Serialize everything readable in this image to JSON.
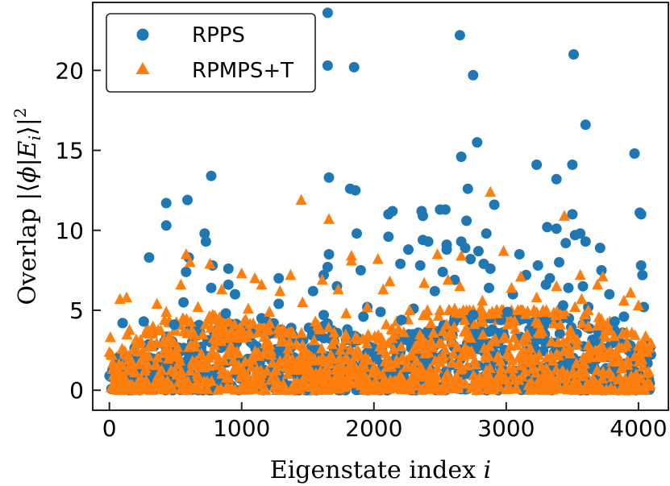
{
  "chart_data": {
    "type": "scatter",
    "xlabel": {
      "text": "Eigenstate index ",
      "var": "i"
    },
    "ylabel": {
      "text": "Overlap |⟨",
      "phi": "ϕ",
      "bar": "|",
      "E": "E",
      "sub": "i",
      "close": "⟩|",
      "sup": "2"
    },
    "xlim": [
      -120,
      4220
    ],
    "ylim": [
      -1.2,
      24.2
    ],
    "xticks": [
      0,
      1000,
      2000,
      3000,
      4000
    ],
    "yticks": [
      0,
      5,
      10,
      15,
      20
    ],
    "xtick_labels": [
      "0",
      "1000",
      "2000",
      "3000",
      "4000"
    ],
    "ytick_labels": [
      "0",
      "5",
      "10",
      "15",
      "20"
    ],
    "n_points": 4096,
    "legend_position": "top-left",
    "grid": false,
    "series": [
      {
        "name": "RPPS",
        "marker": "circle",
        "color": "#1f77b4",
        "highlighted": [
          [
            1650,
            23.6
          ],
          [
            1650,
            20.3
          ],
          [
            1850,
            20.2
          ],
          [
            2650,
            22.2
          ],
          [
            2750,
            19.7
          ],
          [
            3510,
            21.0
          ],
          [
            3600,
            16.6
          ],
          [
            2780,
            15.5
          ],
          [
            2660,
            14.6
          ],
          [
            3230,
            14.1
          ],
          [
            3500,
            14.1
          ],
          [
            3970,
            14.8
          ],
          [
            3380,
            13.2
          ],
          [
            770,
            13.4
          ],
          [
            1660,
            13.3
          ],
          [
            2710,
            12.6
          ],
          [
            1820,
            12.6
          ],
          [
            1860,
            12.5
          ],
          [
            430,
            11.7
          ],
          [
            590,
            11.9
          ],
          [
            2910,
            11.6
          ],
          [
            2140,
            11.2
          ],
          [
            2360,
            11.2
          ],
          [
            2500,
            11.3
          ],
          [
            2540,
            11.3
          ],
          [
            2110,
            11.0
          ],
          [
            2370,
            10.9
          ],
          [
            4010,
            11.1
          ],
          [
            4020,
            11.0
          ],
          [
            3500,
            11.0
          ],
          [
            430,
            10.3
          ],
          [
            2700,
            10.6
          ],
          [
            3310,
            10.2
          ],
          [
            3380,
            10.1
          ],
          [
            720,
            9.8
          ],
          [
            1870,
            9.8
          ],
          [
            2660,
            9.3
          ],
          [
            2850,
            9.8
          ],
          [
            3560,
            9.8
          ],
          [
            3520,
            9.7
          ],
          [
            730,
            9.3
          ],
          [
            2110,
            9.6
          ],
          [
            2410,
            9.3
          ],
          [
            2370,
            9.4
          ],
          [
            2550,
            9.1
          ],
          [
            1660,
            8.5
          ],
          [
            2260,
            8.8
          ],
          [
            2550,
            8.8
          ],
          [
            2690,
            8.9
          ],
          [
            2790,
            8.7
          ],
          [
            3450,
            9.2
          ],
          [
            3600,
            9.3
          ],
          [
            3710,
            8.9
          ],
          [
            300,
            8.3
          ],
          [
            600,
            8.3
          ],
          [
            2200,
            7.9
          ],
          [
            2350,
            7.8
          ],
          [
            2730,
            8.2
          ],
          [
            3100,
            8.5
          ],
          [
            3400,
            8.0
          ],
          [
            4020,
            7.8
          ],
          [
            780,
            7.8
          ],
          [
            1650,
            7.7
          ],
          [
            1900,
            7.5
          ],
          [
            2830,
            7.9
          ],
          [
            3240,
            7.8
          ],
          [
            2880,
            7.6
          ],
          [
            3720,
            7.5
          ],
          [
            900,
            7.6
          ],
          [
            580,
            7.4
          ],
          [
            1280,
            7.0
          ],
          [
            1620,
            7.2
          ],
          [
            2520,
            7.4
          ],
          [
            3150,
            7.2
          ],
          [
            3330,
            7.0
          ],
          [
            4030,
            7.2
          ],
          [
            770,
            6.4
          ],
          [
            900,
            6.6
          ],
          [
            1720,
            6.5
          ],
          [
            2610,
            6.9
          ],
          [
            2870,
            6.4
          ],
          [
            3300,
            6.6
          ],
          [
            3470,
            6.4
          ],
          [
            3580,
            6.5
          ],
          [
            950,
            6.0
          ],
          [
            1540,
            6.2
          ],
          [
            2460,
            6.2
          ],
          [
            3050,
            6.0
          ],
          [
            3780,
            6.0
          ],
          [
            1280,
            5.4
          ],
          [
            560,
            5.5
          ],
          [
            1950,
            5.2
          ],
          [
            2300,
            5.1
          ],
          [
            3430,
            5.3
          ],
          [
            3620,
            5.2
          ],
          [
            4040,
            5.2
          ],
          [
            100,
            4.2
          ],
          [
            880,
            4.8
          ],
          [
            1620,
            4.7
          ],
          [
            2050,
            4.9
          ],
          [
            2750,
            4.7
          ],
          [
            3010,
            4.9
          ],
          [
            3890,
            4.6
          ],
          [
            260,
            4.3
          ],
          [
            1150,
            4.5
          ],
          [
            1920,
            4.6
          ],
          [
            2210,
            4.4
          ],
          [
            2960,
            4.4
          ],
          [
            3820,
            4.3
          ],
          [
            490,
            4.1
          ]
        ]
      },
      {
        "name": "RPMPS+T",
        "marker": "triangle",
        "color": "#ff7f0e",
        "highlighted": [
          [
            2880,
            12.4
          ],
          [
            1450,
            11.9
          ],
          [
            1660,
            10.7
          ],
          [
            3440,
            10.9
          ],
          [
            580,
            8.5
          ],
          [
            1830,
            8.4
          ],
          [
            1830,
            8.1
          ],
          [
            2030,
            8.2
          ],
          [
            2480,
            8.5
          ],
          [
            2660,
            8.4
          ],
          [
            2980,
            8.7
          ],
          [
            610,
            8.0
          ],
          [
            760,
            7.9
          ],
          [
            1370,
            7.2
          ],
          [
            1000,
            7.3
          ],
          [
            2560,
            6.9
          ],
          [
            3110,
            7.1
          ],
          [
            3560,
            7.2
          ],
          [
            3730,
            7.1
          ],
          [
            1100,
            7.0
          ],
          [
            1610,
            6.9
          ],
          [
            2120,
            6.8
          ],
          [
            2380,
            6.7
          ],
          [
            540,
            6.6
          ],
          [
            1150,
            6.6
          ],
          [
            2650,
            6.5
          ],
          [
            3040,
            6.4
          ],
          [
            3380,
            6.5
          ],
          [
            3690,
            6.6
          ],
          [
            1730,
            6.3
          ],
          [
            850,
            6.3
          ],
          [
            1290,
            6.2
          ],
          [
            2070,
            6.3
          ],
          [
            3940,
            6.1
          ],
          [
            80,
            5.7
          ],
          [
            130,
            5.8
          ],
          [
            3230,
            5.8
          ],
          [
            3570,
            5.7
          ],
          [
            3890,
            5.6
          ],
          [
            360,
            5.4
          ],
          [
            1460,
            5.5
          ],
          [
            2820,
            5.6
          ],
          [
            4000,
            5.3
          ],
          [
            670,
            5.2
          ],
          [
            1050,
            5.1
          ],
          [
            1950,
            5.2
          ],
          [
            3520,
            5.2
          ],
          [
            2270,
            5.0
          ],
          [
            2610,
            5.1
          ],
          [
            3620,
            5.0
          ],
          [
            430,
            4.9
          ],
          [
            1210,
            4.9
          ],
          [
            1790,
            4.8
          ],
          [
            2930,
            4.8
          ],
          [
            3310,
            4.9
          ]
        ]
      }
    ]
  }
}
